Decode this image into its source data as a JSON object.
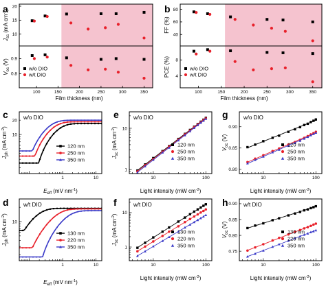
{
  "figure": {
    "panel_letters": [
      "a",
      "b",
      "c",
      "d",
      "e",
      "f",
      "g",
      "h"
    ]
  },
  "colors": {
    "wo": "#000000",
    "wt": "#e8202a",
    "nm350": "#3a3ac8",
    "shade": "#f5c3cf"
  },
  "chart_data": [
    {
      "id": "a",
      "type": "scatter",
      "panel": "a",
      "xlabel": "Film thickness (nm)",
      "x_ticks": [
        100,
        150,
        200,
        250,
        300,
        350
      ],
      "xlim": [
        60,
        370
      ],
      "shade_from": 158,
      "subplots": [
        {
          "ylabel": "Jsc (mA cm-2)",
          "ylabel_main": "J",
          "ylabel_sub": "sc",
          "ylabel_unit": " (mA cm",
          "ylabel_sup": "-2",
          "ylabel_end": ")",
          "yticks": [
            10,
            15,
            20
          ],
          "ylim": [
            6.5,
            20
          ],
          "series": [
            {
              "name": "w/o DIO",
              "color_key": "wo",
              "marker": "square",
              "x": [
                90,
                120,
                170,
                250,
                285,
                350
              ],
              "y": [
                14.8,
                16.5,
                17.2,
                17.3,
                17.3,
                17.8
              ]
            },
            {
              "name": "w/t DIO",
              "color_key": "wt",
              "marker": "circle",
              "x": [
                95,
                125,
                180,
                220,
                260,
                290,
                350
              ],
              "y": [
                14.7,
                16.3,
                14.0,
                11.8,
                12.3,
                13.5,
                8.6
              ]
            }
          ]
        },
        {
          "ylabel": "Voc (V)",
          "ylabel_main": "V",
          "ylabel_sub": "oc",
          "ylabel_unit": " (V)",
          "ylabel_sup": "",
          "ylabel_end": "",
          "yticks": [
            0.8,
            0.9
          ],
          "ylim": [
            0.72,
            0.97
          ],
          "series": [
            {
              "name": "w/o DIO",
              "color_key": "wo",
              "marker": "square",
              "x": [
                90,
                120,
                170,
                250,
                285,
                350
              ],
              "y": [
                0.92,
                0.925,
                0.905,
                0.895,
                0.9,
                0.895
              ]
            },
            {
              "name": "w/t DIO",
              "color_key": "wt",
              "marker": "circle",
              "x": [
                95,
                125,
                180,
                220,
                260,
                290,
                350
              ],
              "y": [
                0.9,
                0.91,
                0.855,
                0.825,
                0.83,
                0.81,
                0.77
              ]
            }
          ]
        }
      ],
      "legend": [
        "w/o DIO",
        "w/t DIO"
      ]
    },
    {
      "id": "b",
      "type": "scatter",
      "panel": "b",
      "xlabel": "Film thickness (nm)",
      "x_ticks": [
        100,
        150,
        200,
        250,
        300,
        350
      ],
      "xlim": [
        60,
        370
      ],
      "shade_from": 158,
      "subplots": [
        {
          "ylabel": "FF (%)",
          "ylabel_main": "FF (%)",
          "ylabel_sub": "",
          "ylabel_unit": "",
          "ylabel_sup": "",
          "ylabel_end": "",
          "yticks": [
            40,
            60,
            80
          ],
          "ylim": [
            25,
            85
          ],
          "series": [
            {
              "name": "w/o DIO",
              "color_key": "wo",
              "marker": "square",
              "x": [
                90,
                120,
                170,
                250,
                285,
                350
              ],
              "y": [
                76,
                73,
                68,
                64,
                63,
                60
              ]
            },
            {
              "name": "w/t DIO",
              "color_key": "wt",
              "marker": "circle",
              "x": [
                95,
                125,
                180,
                220,
                260,
                290,
                350
              ],
              "y": [
                75,
                72,
                64,
                55,
                50,
                45,
                30
              ]
            }
          ]
        },
        {
          "ylabel": "PCE (%)",
          "ylabel_main": "PCE (%)",
          "ylabel_sub": "",
          "ylabel_unit": "",
          "ylabel_sup": "",
          "ylabel_end": "",
          "yticks": [
            4,
            8
          ],
          "ylim": [
            1.5,
            11
          ],
          "series": [
            {
              "name": "w/o DIO",
              "color_key": "wo",
              "marker": "square",
              "x": [
                90,
                120,
                170,
                250,
                285,
                350
              ],
              "y": [
                10.2,
                10.6,
                10.3,
                9.9,
                9.8,
                9.6
              ]
            },
            {
              "name": "w/t DIO",
              "color_key": "wt",
              "marker": "circle",
              "x": [
                95,
                125,
                180,
                220,
                260,
                290,
                350
              ],
              "y": [
                9.5,
                10.2,
                7.6,
                5.5,
                5.8,
                6.0,
                2.5
              ]
            }
          ]
        }
      ],
      "legend": [
        "w/o DIO",
        "w/t DIO"
      ]
    },
    {
      "id": "c",
      "type": "line",
      "panel": "c",
      "annotation": "w/o DIO",
      "log_x": true,
      "log_y": true,
      "xlabel_main": "E",
      "xlabel_sub": "eff",
      "xlabel_unit": " (mV nm",
      "xlabel_sup": "-1",
      "xlabel_end": ")",
      "ylabel_main": "J",
      "ylabel_sub": "ph",
      "ylabel_unit": " (mA cm",
      "ylabel_sup": "-2",
      "ylabel_end": ")",
      "xlim": [
        0.05,
        15
      ],
      "ylim": [
        1.5,
        30
      ],
      "yticks": [
        10,
        20
      ],
      "ytick_labels": [
        "10",
        "20"
      ],
      "xticks": [
        1,
        10
      ],
      "xtick_labels": [
        "1",
        "10"
      ],
      "series": [
        {
          "name": "120 nm",
          "color_key": "wo",
          "marker": "square",
          "sat": 17,
          "k": 0.45,
          "x0": 0.12,
          "min": 2.5
        },
        {
          "name": "250 nm",
          "color_key": "wt",
          "marker": "circle",
          "sat": 18.5,
          "k": 0.32,
          "x0": 0.08,
          "min": 3.5
        },
        {
          "name": "350 nm",
          "color_key": "nm350",
          "marker": "triangle",
          "sat": 20,
          "k": 0.25,
          "x0": 0.06,
          "min": 4.5
        }
      ]
    },
    {
      "id": "d",
      "type": "line",
      "panel": "d",
      "annotation": "w/t DIO",
      "log_x": true,
      "log_y": true,
      "xlabel_main": "E",
      "xlabel_sub": "eff",
      "xlabel_unit": " (mV nm",
      "xlabel_sup": "-1",
      "xlabel_end": ")",
      "ylabel_main": "J",
      "ylabel_sub": "ph",
      "ylabel_unit": " (mA cm",
      "ylabel_sup": "-2",
      "ylabel_end": ")",
      "xlim": [
        0.05,
        15
      ],
      "ylim": [
        1.5,
        30
      ],
      "yticks": [
        10
      ],
      "ytick_labels": [
        "10"
      ],
      "xticks": [
        1,
        10
      ],
      "xtick_labels": [
        "1",
        "10"
      ],
      "series": [
        {
          "name": "130 nm",
          "color_key": "wo",
          "marker": "square",
          "sat": 19,
          "k": 0.12,
          "x0": 0.02,
          "min": 6.5
        },
        {
          "name": "220 nm",
          "color_key": "wt",
          "marker": "circle",
          "sat": 18.5,
          "k": 0.45,
          "x0": 0.05,
          "min": 2.8
        },
        {
          "name": "350 nm",
          "color_key": "nm350",
          "marker": "triangle",
          "sat": 17,
          "k": 0.9,
          "x0": 0.15,
          "min": 1.8
        }
      ]
    },
    {
      "id": "e",
      "type": "scatter",
      "panel": "e",
      "annotation": "w/o DIO",
      "log_x": true,
      "log_y": true,
      "xlabel": "Light intensity (mW cm-2)",
      "ylabel_main": "J",
      "ylabel_sub": "sc",
      "ylabel_unit": " (mA cm",
      "ylabel_sup": "-2",
      "ylabel_end": ")",
      "xlim": [
        3.5,
        130
      ],
      "ylim": [
        0.8,
        25
      ],
      "yticks": [
        1,
        10
      ],
      "ytick_labels": [
        "1",
        "10"
      ],
      "xticks": [
        10,
        100
      ],
      "xtick_labels": [
        "10",
        "100"
      ],
      "x": [
        5,
        7,
        10,
        15,
        20,
        30,
        40,
        50,
        60,
        70,
        80,
        90,
        100
      ],
      "series": [
        {
          "name": "120 nm",
          "color_key": "wo",
          "marker": "square",
          "y": [
            0.95,
            1.33,
            1.9,
            2.8,
            3.7,
            5.5,
            7.3,
            9.1,
            10.9,
            12.6,
            14.4,
            16.1,
            17.9
          ]
        },
        {
          "name": "250 nm",
          "color_key": "wt",
          "marker": "circle",
          "y": [
            0.9,
            1.27,
            1.8,
            2.7,
            3.6,
            5.3,
            7.1,
            8.8,
            10.6,
            12.3,
            14.0,
            15.7,
            17.4
          ]
        },
        {
          "name": "350 nm",
          "color_key": "nm350",
          "marker": "triangle",
          "y": [
            0.85,
            1.2,
            1.72,
            2.6,
            3.4,
            5.1,
            6.8,
            8.5,
            10.2,
            11.9,
            13.6,
            15.2,
            16.9
          ]
        }
      ]
    },
    {
      "id": "f",
      "type": "scatter",
      "panel": "f",
      "annotation": "w/t DIO",
      "log_x": true,
      "log_y": true,
      "xlabel": "Light intensity (mW cm-2)",
      "ylabel_main": "J",
      "ylabel_sub": "sc",
      "ylabel_unit": " (mA cm",
      "ylabel_sup": "-2",
      "ylabel_end": ")",
      "xlim": [
        3.5,
        130
      ],
      "ylim": [
        0.4,
        25
      ],
      "yticks": [
        1,
        10
      ],
      "ytick_labels": [
        "1",
        "10"
      ],
      "xticks": [
        10,
        100
      ],
      "xtick_labels": [
        "10",
        "100"
      ],
      "x": [
        5,
        7,
        10,
        15,
        20,
        30,
        40,
        50,
        60,
        70,
        80,
        90,
        100
      ],
      "series": [
        {
          "name": "130 nm",
          "color_key": "wo",
          "marker": "square",
          "y": [
            0.95,
            1.33,
            1.9,
            2.8,
            3.7,
            5.5,
            7.2,
            9.0,
            10.7,
            12.4,
            14.1,
            15.8,
            17.5
          ]
        },
        {
          "name": "220 nm",
          "color_key": "wt",
          "marker": "circle",
          "y": [
            0.75,
            1.03,
            1.45,
            2.1,
            2.8,
            4.0,
            5.3,
            6.5,
            7.7,
            8.9,
            10.1,
            11.2,
            12.4
          ]
        },
        {
          "name": "350 nm",
          "color_key": "nm350",
          "marker": "triangle",
          "y": [
            0.55,
            0.75,
            1.05,
            1.5,
            1.95,
            2.8,
            3.7,
            4.5,
            5.3,
            6.1,
            6.9,
            7.7,
            8.5
          ]
        }
      ]
    },
    {
      "id": "g",
      "type": "scatter",
      "panel": "g",
      "annotation": "w/o DIO",
      "log_x": true,
      "log_y": false,
      "xlabel": "Light intensity (mW cm-2)",
      "ylabel_main": "V",
      "ylabel_sub": "oc",
      "ylabel_unit": " (V)",
      "ylabel_sup": "",
      "ylabel_end": "",
      "xlim": [
        3.5,
        130
      ],
      "ylim": [
        0.79,
        0.935
      ],
      "yticks": [
        0.8,
        0.85,
        0.9
      ],
      "ytick_labels": [
        "0.80",
        "0.85",
        "0.90"
      ],
      "xticks": [
        10,
        100
      ],
      "xtick_labels": [
        "10",
        "100"
      ],
      "x": [
        5,
        7,
        10,
        15,
        20,
        30,
        40,
        50,
        60,
        70,
        80,
        90,
        100
      ],
      "series": [
        {
          "name": "120 nm",
          "color_key": "wo",
          "marker": "square",
          "y": [
            0.852,
            0.858,
            0.866,
            0.874,
            0.879,
            0.888,
            0.894,
            0.899,
            0.904,
            0.907,
            0.911,
            0.914,
            0.917
          ]
        },
        {
          "name": "250 nm",
          "color_key": "wt",
          "marker": "circle",
          "y": [
            0.817,
            0.825,
            0.833,
            0.843,
            0.849,
            0.858,
            0.864,
            0.869,
            0.874,
            0.878,
            0.882,
            0.885,
            0.888
          ]
        },
        {
          "name": "350 nm",
          "color_key": "nm350",
          "marker": "triangle",
          "y": [
            0.814,
            0.822,
            0.83,
            0.84,
            0.846,
            0.855,
            0.862,
            0.867,
            0.872,
            0.876,
            0.88,
            0.883,
            0.886
          ]
        }
      ]
    },
    {
      "id": "h",
      "type": "scatter",
      "panel": "h",
      "annotation": "w/t DIO",
      "log_x": true,
      "log_y": false,
      "xlabel": "Light intensity (mW cm-2)",
      "ylabel_main": "V",
      "ylabel_sub": "oc",
      "ylabel_unit": " (V)",
      "ylabel_sup": "",
      "ylabel_end": "",
      "xlim": [
        3.5,
        130
      ],
      "ylim": [
        0.72,
        0.915
      ],
      "yticks": [
        0.75,
        0.8,
        0.85,
        0.9
      ],
      "ytick_labels": [
        "0.75",
        "0.80",
        "0.85",
        "0.90"
      ],
      "xticks": [
        10,
        100
      ],
      "xtick_labels": [
        "10",
        "100"
      ],
      "x": [
        5,
        7,
        10,
        15,
        20,
        30,
        40,
        50,
        60,
        70,
        80,
        90,
        100
      ],
      "series": [
        {
          "name": "130 nm",
          "color_key": "wo",
          "marker": "square",
          "y": [
            0.823,
            0.831,
            0.838,
            0.848,
            0.854,
            0.863,
            0.869,
            0.874,
            0.879,
            0.882,
            0.886,
            0.889,
            0.892
          ]
        },
        {
          "name": "220 nm",
          "color_key": "wt",
          "marker": "circle",
          "y": [
            0.752,
            0.762,
            0.772,
            0.784,
            0.792,
            0.803,
            0.811,
            0.817,
            0.822,
            0.826,
            0.83,
            0.834,
            0.837
          ]
        },
        {
          "name": "350 nm",
          "color_key": "nm350",
          "marker": "triangle",
          "y": [
            0.733,
            0.742,
            0.752,
            0.764,
            0.772,
            0.783,
            0.791,
            0.797,
            0.802,
            0.806,
            0.81,
            0.813,
            0.816
          ]
        }
      ]
    }
  ]
}
